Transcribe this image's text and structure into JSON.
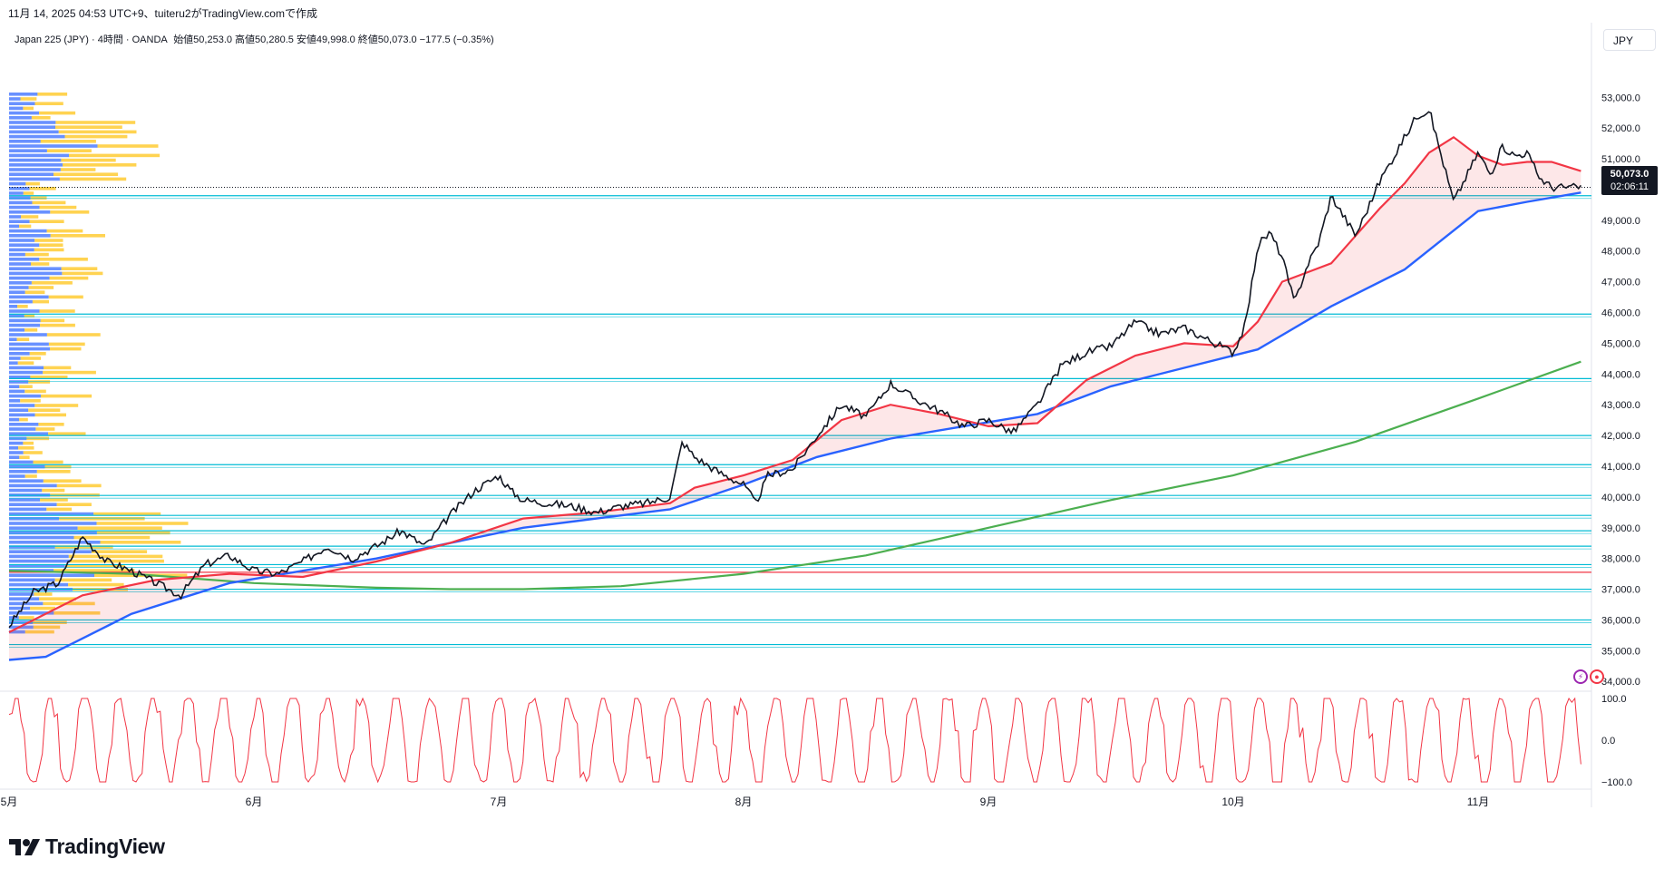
{
  "header": {
    "created_line": "11月 14, 2025 04:53 UTC+9、tuiteru2がTradingView.comで作成",
    "symbol_line": "Japan 225 (JPY) · 4時間 · OANDA",
    "ohlc": "始値50,253.0 高値50,280.5 安値49,998.0 終値50,073.0 −177.5 (−0.35%)"
  },
  "currency_button": "JPY",
  "last_price": {
    "label": "50,073.0",
    "countdown": "02:06:11"
  },
  "brand": "TradingView",
  "colors": {
    "price": "#131722",
    "ema_fast": "#f23645",
    "ema_mid": "#2962ff",
    "sma_long": "#4caf50",
    "hline": "#00bcd4",
    "support_red": "#f23645",
    "vp_up": "#2962ff",
    "vp_down": "#ffc107",
    "oscillator": "#f23645",
    "fill": "#f23645"
  },
  "chart_data": {
    "type": "line",
    "title": "Japan 225 (JPY) 4時間",
    "y_tick_labels": [
      "53,000.0",
      "52,000.0",
      "51,000.0",
      "50,000.0",
      "49,000.0",
      "48,000.0",
      "47,000.0",
      "46,000.0",
      "45,000.0",
      "44,000.0",
      "43,000.0",
      "42,000.0",
      "41,000.0",
      "40,000.0",
      "39,000.0",
      "38,000.0",
      "37,000.0",
      "36,000.0",
      "35,000.0",
      "34,000.0"
    ],
    "y_ticks": [
      53000,
      52000,
      51000,
      50000,
      49000,
      48000,
      47000,
      46000,
      45000,
      44000,
      43000,
      42000,
      41000,
      40000,
      39000,
      38000,
      37000,
      36000,
      35000,
      34000
    ],
    "ylim": [
      33800,
      54100
    ],
    "x_tick_labels": [
      "5月",
      "6月",
      "7月",
      "8月",
      "9月",
      "10月",
      "11月"
    ],
    "x_ticks": [
      0,
      1,
      2,
      3,
      4,
      5,
      6
    ],
    "x_unit": "month index (0 = May 2025)",
    "xlim": [
      0,
      6.45
    ],
    "series": [
      {
        "key": "price",
        "x": [
          0.0,
          0.1,
          0.2,
          0.3,
          0.4,
          0.5,
          0.6,
          0.7,
          0.8,
          0.9,
          1.0,
          1.1,
          1.2,
          1.3,
          1.4,
          1.5,
          1.6,
          1.7,
          1.8,
          1.9,
          2.0,
          2.05,
          2.1,
          2.2,
          2.3,
          2.4,
          2.5,
          2.6,
          2.7,
          2.75,
          2.8,
          2.9,
          3.0,
          3.05,
          3.1,
          3.2,
          3.3,
          3.4,
          3.5,
          3.6,
          3.7,
          3.8,
          3.9,
          4.0,
          4.1,
          4.2,
          4.3,
          4.4,
          4.5,
          4.6,
          4.7,
          4.8,
          4.9,
          5.0,
          5.05,
          5.1,
          5.15,
          5.2,
          5.25,
          5.3,
          5.35,
          5.4,
          5.5,
          5.6,
          5.7,
          5.75,
          5.8,
          5.9,
          6.0,
          6.05,
          6.1,
          6.15,
          6.2,
          6.25,
          6.3,
          6.35,
          6.42
        ],
        "y": [
          35800,
          36900,
          37200,
          38700,
          37900,
          37600,
          37200,
          36800,
          37800,
          38100,
          37600,
          37500,
          37900,
          38400,
          38000,
          38400,
          38900,
          38400,
          39400,
          40200,
          40700,
          40200,
          39900,
          39800,
          39700,
          39500,
          39700,
          39800,
          40000,
          41800,
          41300,
          40800,
          40400,
          39800,
          40700,
          40900,
          42000,
          43000,
          42600,
          43700,
          43200,
          42800,
          42300,
          42500,
          42100,
          43000,
          44300,
          44700,
          44900,
          45700,
          45300,
          45500,
          45100,
          44700,
          45600,
          48200,
          48600,
          47800,
          46300,
          47500,
          48300,
          49800,
          48500,
          50300,
          51700,
          52400,
          52600,
          49600,
          51200,
          50500,
          51400,
          51100,
          51200,
          50400,
          50073,
          50073,
          50073
        ]
      },
      {
        "key": "ema_fast",
        "x": [
          0.0,
          0.3,
          0.6,
          0.9,
          1.2,
          1.5,
          1.8,
          2.1,
          2.4,
          2.7,
          2.8,
          3.0,
          3.2,
          3.4,
          3.6,
          3.8,
          4.0,
          4.2,
          4.4,
          4.6,
          4.8,
          5.0,
          5.1,
          5.2,
          5.3,
          5.4,
          5.5,
          5.6,
          5.7,
          5.8,
          5.9,
          6.0,
          6.1,
          6.2,
          6.3,
          6.42
        ],
        "y": [
          35600,
          36800,
          37300,
          37500,
          37400,
          37900,
          38500,
          39300,
          39500,
          39800,
          40300,
          40700,
          41200,
          42500,
          43000,
          42700,
          42300,
          42400,
          43800,
          44600,
          45000,
          44900,
          45700,
          47000,
          47300,
          47600,
          48500,
          49400,
          50200,
          51200,
          51700,
          51100,
          50800,
          50900,
          50900,
          50600
        ]
      },
      {
        "key": "ema_mid",
        "x": [
          0.0,
          0.15,
          0.3,
          0.5,
          0.7,
          0.9,
          1.2,
          1.5,
          1.8,
          2.1,
          2.4,
          2.7,
          3.0,
          3.3,
          3.6,
          3.9,
          4.2,
          4.5,
          4.8,
          5.1,
          5.4,
          5.7,
          6.0,
          6.2,
          6.42
        ],
        "y": [
          34700,
          34800,
          35400,
          36200,
          36700,
          37200,
          37600,
          38000,
          38500,
          39000,
          39300,
          39600,
          40400,
          41300,
          41900,
          42300,
          42700,
          43600,
          44200,
          44800,
          46200,
          47400,
          49300,
          49600,
          49900
        ]
      },
      {
        "key": "sma_long",
        "x": [
          0.0,
          0.5,
          1.0,
          1.5,
          1.8,
          2.1,
          2.5,
          3.0,
          3.5,
          4.0,
          4.5,
          5.0,
          5.5,
          6.0,
          6.42
        ],
        "y": [
          37600,
          37500,
          37200,
          37050,
          37000,
          37000,
          37100,
          37500,
          38100,
          39000,
          39900,
          40700,
          41800,
          43200,
          44400
        ]
      },
      {
        "key": "oscillator",
        "x": [
          0.0,
          6.42
        ],
        "y": [
          -100,
          100
        ],
        "ylim": [
          -100,
          100
        ]
      }
    ],
    "hlines": [
      49800,
      45950,
      43850,
      42000,
      41050,
      40050,
      39400,
      38900,
      38400,
      37800,
      37000,
      36000,
      35200
    ],
    "red_line": 37550,
    "osc_y_tick_labels": [
      "100.0",
      "0.0",
      "−100.0"
    ],
    "osc_y_ticks": [
      100,
      0,
      -100
    ],
    "grid": false,
    "legend": "none"
  }
}
